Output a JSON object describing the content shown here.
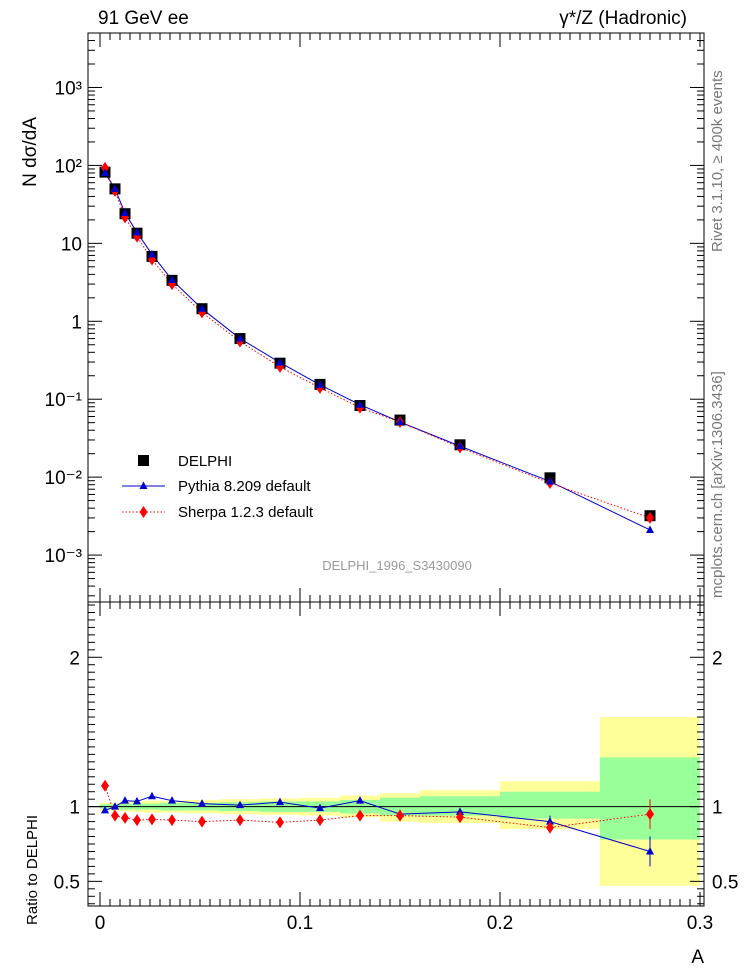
{
  "header": {
    "left_title": "91 GeV ee",
    "right_title": "γ*/Z (Hadronic)"
  },
  "side_labels": {
    "rivet": "Rivet 3.1.10, ≥ 400k events",
    "mcplots": "mcplots.cern.ch [arXiv:1306.3436]"
  },
  "watermark": "DELPHI_1996_S3430090",
  "colors": {
    "data": "#000000",
    "pythia": "#0000cc",
    "sherpa": "#ff0000",
    "band_outer": "#ffff99",
    "band_inner": "#99ff99",
    "side_text": "#777777"
  },
  "chart_data": [
    {
      "type": "scatter",
      "ylabel": "N dσ/dA",
      "yscale": "log",
      "xlim": [
        -0.006,
        0.302
      ],
      "ylim": [
        0.00025,
        5000
      ],
      "ytick_labels": [
        "10⁻³",
        "10⁻²",
        "10⁻¹",
        "1",
        "10",
        "10²",
        "10³"
      ],
      "legend": {
        "position": "bottom-left",
        "entries": [
          "DELPHI",
          "Pythia 8.209 default",
          "Sherpa 1.2.3 default"
        ]
      },
      "x": [
        0.0025,
        0.0075,
        0.0125,
        0.0185,
        0.026,
        0.036,
        0.051,
        0.07,
        0.09,
        0.11,
        0.13,
        0.15,
        0.18,
        0.225,
        0.275
      ],
      "series": [
        {
          "name": "DELPHI",
          "values": [
            82,
            50,
            24,
            13.5,
            6.8,
            3.35,
            1.45,
            0.6,
            0.29,
            0.155,
            0.083,
            0.054,
            0.026,
            0.0098,
            0.0032
          ]
        },
        {
          "name": "Pythia 8.209 default",
          "values": [
            80,
            50,
            24.5,
            13.8,
            7.2,
            3.4,
            1.45,
            0.6,
            0.295,
            0.153,
            0.085,
            0.051,
            0.025,
            0.0088,
            0.0021
          ]
        },
        {
          "name": "Sherpa 1.2.3 default",
          "values": [
            93,
            47,
            21.5,
            12.2,
            6.2,
            3.0,
            1.3,
            0.55,
            0.26,
            0.14,
            0.078,
            0.051,
            0.024,
            0.0084,
            0.003
          ]
        }
      ]
    },
    {
      "type": "line",
      "xlabel": "A",
      "ylabel": "Ratio to DELPHI",
      "xlim": [
        -0.006,
        0.302
      ],
      "ylim": [
        0.335,
        2.37
      ],
      "xtick_labels": [
        "0",
        "0.1",
        "0.2",
        "0.3"
      ],
      "ytick_labels": [
        "0.5",
        "1",
        "2"
      ],
      "x": [
        0.0025,
        0.0075,
        0.0125,
        0.0185,
        0.026,
        0.036,
        0.051,
        0.07,
        0.09,
        0.11,
        0.13,
        0.15,
        0.18,
        0.225,
        0.275
      ],
      "series": [
        {
          "name": "Pythia 8.209 default",
          "values": [
            0.975,
            1.0,
            1.04,
            1.035,
            1.07,
            1.04,
            1.02,
            1.01,
            1.03,
            0.99,
            1.04,
            0.95,
            0.965,
            0.9,
            0.7
          ],
          "errors": [
            0.005,
            0.005,
            0.005,
            0.005,
            0.005,
            0.005,
            0.005,
            0.008,
            0.01,
            0.015,
            0.02,
            0.025,
            0.025,
            0.04,
            0.1
          ]
        },
        {
          "name": "Sherpa 1.2.3 default",
          "values": [
            1.14,
            0.94,
            0.925,
            0.91,
            0.915,
            0.91,
            0.9,
            0.91,
            0.895,
            0.91,
            0.94,
            0.94,
            0.93,
            0.86,
            0.95
          ],
          "errors": [
            0.005,
            0.005,
            0.005,
            0.005,
            0.005,
            0.005,
            0.005,
            0.008,
            0.01,
            0.015,
            0.02,
            0.025,
            0.025,
            0.04,
            0.1
          ]
        }
      ],
      "bands": [
        {
          "x0": 0.0,
          "x1": 0.005,
          "lo": 0.985,
          "hi": 1.015,
          "lo2": 0.975,
          "hi2": 1.025
        },
        {
          "x0": 0.005,
          "x1": 0.01,
          "lo": 0.985,
          "hi": 1.015,
          "lo2": 0.975,
          "hi2": 1.025
        },
        {
          "x0": 0.01,
          "x1": 0.015,
          "lo": 0.98,
          "hi": 1.02,
          "lo2": 0.97,
          "hi2": 1.03
        },
        {
          "x0": 0.015,
          "x1": 0.022,
          "lo": 0.98,
          "hi": 1.02,
          "lo2": 0.965,
          "hi2": 1.035
        },
        {
          "x0": 0.022,
          "x1": 0.03,
          "lo": 0.98,
          "hi": 1.02,
          "lo2": 0.96,
          "hi2": 1.04
        },
        {
          "x0": 0.03,
          "x1": 0.042,
          "lo": 0.975,
          "hi": 1.025,
          "lo2": 0.96,
          "hi2": 1.04
        },
        {
          "x0": 0.042,
          "x1": 0.06,
          "lo": 0.975,
          "hi": 1.025,
          "lo2": 0.955,
          "hi2": 1.045
        },
        {
          "x0": 0.06,
          "x1": 0.08,
          "lo": 0.97,
          "hi": 1.03,
          "lo2": 0.95,
          "hi2": 1.05
        },
        {
          "x0": 0.08,
          "x1": 0.1,
          "lo": 0.965,
          "hi": 1.035,
          "lo2": 0.945,
          "hi2": 1.055
        },
        {
          "x0": 0.1,
          "x1": 0.12,
          "lo": 0.965,
          "hi": 1.035,
          "lo2": 0.94,
          "hi2": 1.06
        },
        {
          "x0": 0.12,
          "x1": 0.14,
          "lo": 0.955,
          "hi": 1.045,
          "lo2": 0.93,
          "hi2": 1.075
        },
        {
          "x0": 0.14,
          "x1": 0.16,
          "lo": 0.94,
          "hi": 1.06,
          "lo2": 0.9,
          "hi2": 1.09
        },
        {
          "x0": 0.16,
          "x1": 0.2,
          "lo": 0.94,
          "hi": 1.07,
          "lo2": 0.89,
          "hi2": 1.11
        },
        {
          "x0": 0.2,
          "x1": 0.25,
          "lo": 0.92,
          "hi": 1.1,
          "lo2": 0.85,
          "hi2": 1.17
        },
        {
          "x0": 0.25,
          "x1": 0.3,
          "lo": 0.78,
          "hi": 1.33,
          "lo2": 0.47,
          "hi2": 1.6
        }
      ]
    }
  ]
}
